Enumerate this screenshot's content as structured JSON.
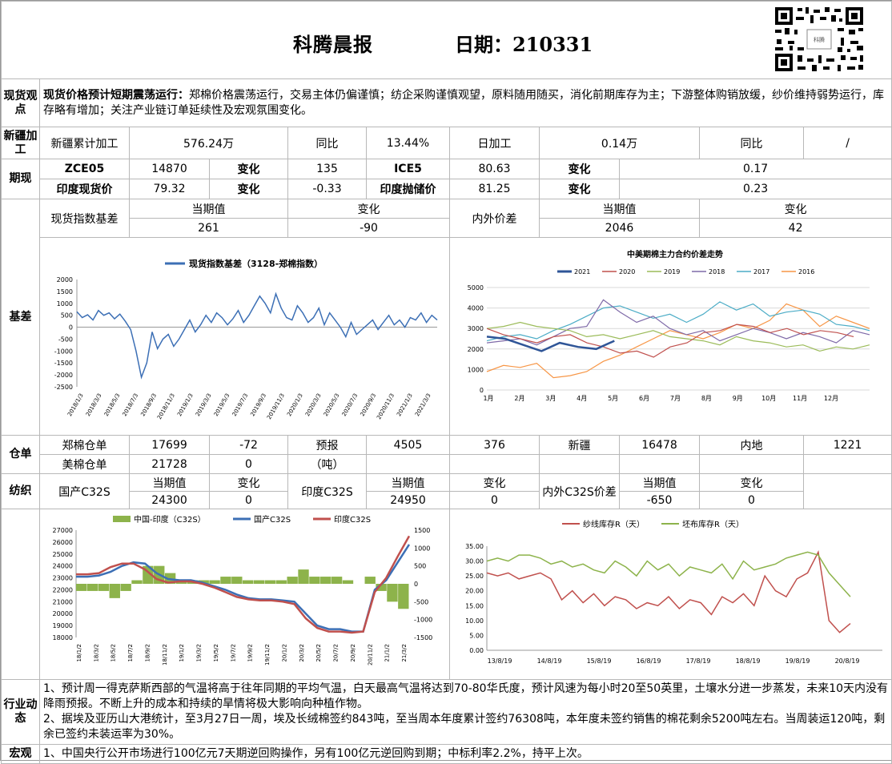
{
  "header": {
    "title": "科腾晨报",
    "date_label": "日期：210331",
    "qr_caption": "科腾"
  },
  "spot": {
    "label": "现货观点",
    "headline": "现货价格预计短期震荡运行：",
    "body": "郑棉价格震荡运行，交易主体仍偏谨慎；纺企采购谨慎观望，原料随用随买，消化前期库存为主；下游整体购销放缓，纱价维持弱势运行，库存略有增加；关注产业链订单延续性及宏观氛围变化。"
  },
  "xinjiang": {
    "label": "新疆加工",
    "cum_label": "新疆累计加工",
    "cum_value": "576.24万",
    "yoy_label": "同比",
    "yoy_value": "13.44%",
    "daily_label": "日加工",
    "daily_value": "0.14万",
    "yoy2_label": "同比",
    "yoy2_value": "/"
  },
  "futures": {
    "label": "期现",
    "rows": [
      {
        "k1": "ZCE05",
        "v1": "14870",
        "c1": "变化",
        "d1": "135",
        "k2": "ICE5",
        "v2": "80.63",
        "c2": "变化",
        "d2": "0.17"
      },
      {
        "k1": "印度现货价",
        "v1": "79.32",
        "c1": "变化",
        "d1": "-0.33",
        "k2": "印度抛储价",
        "v2": "81.25",
        "c2": "变化",
        "d2": "0.23"
      }
    ]
  },
  "basis": {
    "label": "基差",
    "idx_label": "现货指数基差",
    "cur_label": "当期值",
    "chg_label": "变化",
    "idx_cur": "261",
    "idx_chg": "-90",
    "diff_label": "内外价差",
    "diff_cur_label": "当期值",
    "diff_chg_label": "变化",
    "diff_cur": "2046",
    "diff_chg": "42"
  },
  "warehouse": {
    "label": "仓单",
    "zhengmian_label": "郑棉仓单",
    "zhengmian_value": "17699",
    "zhengmian_chg": "-72",
    "forecast_label": "预报",
    "forecast_unit": "（吨）",
    "forecast_value": "4505",
    "forecast_chg": "376",
    "xj_label": "新疆",
    "xj_value": "16478",
    "nd_label": "内地",
    "nd_value": "1221",
    "us_label": "美棉仓单",
    "us_value": "21728",
    "us_chg": "0"
  },
  "spinning": {
    "label": "纺织",
    "dom_label": "国产C32S",
    "cur_label": "当期值",
    "chg_label": "变化",
    "dom_cur": "24300",
    "dom_chg": "0",
    "ind_label": "印度C32S",
    "ind_cur_label": "当期值",
    "ind_chg_label": "变化",
    "ind_cur": "24950",
    "ind_chg": "0",
    "diff_label": "内外C32S价差",
    "diff_cur_label": "当期值",
    "diff_chg_label": "变化",
    "diff_cur": "-650",
    "diff_chg": "0"
  },
  "industry": {
    "label": "行业动态",
    "items": [
      "1、预计周一得克萨斯西部的气温将高于往年同期的平均气温，白天最高气温将达到70-80华氏度，预计风速为每小时20至50英里，土壤水分进一步蒸发，未来10天内没有降雨预报。不断上升的成本和持续的旱情将极大影响向种植作物。",
      "2、据埃及亚历山大港统计，至3月27日一周，埃及长绒棉签约843吨，至当周本年度累计签约76308吨，本年度未签约销售的棉花剩余5200吨左右。当周装运120吨，剩余已签约未装运率为30%。"
    ]
  },
  "macro": {
    "label": "宏观",
    "text": "1、中国央行公开市场进行100亿元7天期逆回购操作，另有100亿元逆回购到期；中标利率2.2%，持平上次。"
  },
  "chart_data": [
    {
      "type": "line",
      "title": "",
      "legend": [
        "现货指数基差（3128-郑棉指数）"
      ],
      "ylim": [
        -2500,
        2000
      ],
      "yticks": [
        "2000",
        "1500",
        "1000",
        "500",
        "0",
        "-500",
        "-1000",
        "-1500",
        "-2000",
        "-2500"
      ],
      "xticks": [
        "2018/1/3",
        "2018/3/3",
        "2018/5/3",
        "2018/7/3",
        "2018/9/3",
        "2018/11/3",
        "2019/1/3",
        "2019/3/3",
        "2019/5/3",
        "2019/7/3",
        "2019/9/3",
        "2019/11/3",
        "2020/1/3",
        "2020/3/3",
        "2020/5/3",
        "2020/7/3",
        "2020/9/3",
        "2020/11/3",
        "2021/1/3",
        "2021/3/3"
      ],
      "series": [
        {
          "name": "现货指数基差（3128-郑棉指数）",
          "color": "#3c6fb5",
          "values": [
            650,
            400,
            520,
            300,
            700,
            500,
            600,
            350,
            550,
            250,
            -100,
            -1000,
            -2100,
            -1500,
            -200,
            -900,
            -500,
            -300,
            -800,
            -500,
            -100,
            300,
            -200,
            100,
            500,
            200,
            600,
            400,
            100,
            350,
            700,
            200,
            500,
            900,
            1300,
            1000,
            600,
            1400,
            800,
            400,
            300,
            900,
            600,
            200,
            400,
            800,
            100,
            600,
            300,
            0,
            -400,
            200,
            -300,
            -100,
            100,
            300,
            -100,
            200,
            500,
            100,
            300,
            0,
            400,
            300,
            600,
            200,
            500,
            300
          ]
        }
      ]
    },
    {
      "type": "line",
      "title": "中美期棉主力合约价差走势",
      "ylim": [
        0,
        5000
      ],
      "yticks": [
        "5000",
        "4000",
        "3000",
        "2000",
        "1000",
        "0"
      ],
      "xticks": [
        "1月",
        "2月",
        "3月",
        "4月",
        "5月",
        "6月",
        "7月",
        "8月",
        "9月",
        "10月",
        "11月",
        "12月"
      ],
      "series": [
        {
          "name": "2021",
          "color": "#2f5597",
          "values": [
            2600,
            2500,
            2200,
            1900,
            2300,
            2100,
            2000,
            2400
          ]
        },
        {
          "name": "2020",
          "color": "#c0504d",
          "values": [
            3000,
            2700,
            2500,
            2300,
            2600,
            2700,
            2300,
            2100,
            1800,
            1900,
            1600,
            2100,
            2300,
            2800,
            2900,
            3200,
            3100,
            2800,
            3000,
            2700,
            2900,
            2800,
            2600
          ]
        },
        {
          "name": "2019",
          "color": "#9bbb59",
          "values": [
            3000,
            3100,
            3300,
            3100,
            3000,
            2900,
            2600,
            2700,
            2500,
            2700,
            2900,
            2600,
            2500,
            2400,
            2200,
            2600,
            2400,
            2300,
            2100,
            2200,
            1900,
            2100,
            2000,
            2200
          ]
        },
        {
          "name": "2018",
          "color": "#7f6aa8",
          "values": [
            2300,
            2400,
            2500,
            2200,
            2600,
            3000,
            3100,
            4400,
            3800,
            3300,
            3600,
            3000,
            2700,
            2900,
            2400,
            2700,
            3000,
            2800,
            2500,
            2800,
            2600,
            2300,
            2900,
            2700
          ]
        },
        {
          "name": "2017",
          "color": "#4bacc6",
          "values": [
            2400,
            2600,
            2700,
            2500,
            2900,
            3200,
            3600,
            4000,
            4100,
            3800,
            3500,
            3700,
            3300,
            3700,
            4300,
            3900,
            4200,
            3600,
            3800,
            3900,
            3700,
            3200,
            3100,
            2900
          ]
        },
        {
          "name": "2016",
          "color": "#f79646",
          "values": [
            900,
            1200,
            1100,
            1300,
            600,
            700,
            900,
            1400,
            1700,
            2100,
            2500,
            2900,
            2700,
            2500,
            2800,
            3200,
            3000,
            3400,
            4200,
            3900,
            3100,
            3600,
            3300,
            3000
          ]
        }
      ]
    },
    {
      "type": "line",
      "title": "",
      "legend": [
        "中国-印度（C32S）",
        "国产C32S",
        "印度C32S"
      ],
      "ylim": [
        18000,
        27000
      ],
      "y2lim": [
        -1500,
        1500
      ],
      "yticks": [
        "27000",
        "26000",
        "25000",
        "24000",
        "23000",
        "22000",
        "21000",
        "20000",
        "19000",
        "18000"
      ],
      "y2ticks": [
        "1500",
        "1000",
        "500",
        "0",
        "-500",
        "-1000",
        "-1500"
      ],
      "xticks": [
        "18/1/2",
        "18/3/2",
        "18/5/2",
        "18/7/2",
        "18/9/2",
        "18/11/2",
        "19/1/2",
        "19/3/2",
        "19/5/2",
        "19/7/2",
        "19/9/2",
        "19/11/2",
        "20/1/2",
        "20/3/2",
        "20/5/2",
        "20/7/2",
        "20/9/2",
        "20/11/2",
        "21/1/2",
        "21/3/2"
      ],
      "series": [
        {
          "name": "国产C32S",
          "color": "#3c6fb5",
          "values": [
            23100,
            23100,
            23200,
            23500,
            24000,
            24300,
            24200,
            23400,
            22900,
            22800,
            22800,
            22600,
            22300,
            22000,
            21600,
            21300,
            21200,
            21200,
            21100,
            21000,
            20000,
            19000,
            18700,
            18700,
            18500,
            18500,
            22000,
            22800,
            24300,
            25800
          ]
        },
        {
          "name": "印度C32S",
          "color": "#c0504d",
          "values": [
            23300,
            23300,
            23400,
            23900,
            24200,
            24200,
            23700,
            22900,
            22600,
            22700,
            22700,
            22500,
            22200,
            21800,
            21400,
            21200,
            21100,
            21100,
            21000,
            20800,
            19600,
            18800,
            18500,
            18500,
            18400,
            18500,
            21800,
            23000,
            24800,
            26500
          ]
        },
        {
          "name": "中国-印度（C32S）",
          "color": "#8db34b",
          "values": [
            -200,
            -200,
            -200,
            -400,
            -200,
            100,
            500,
            500,
            300,
            100,
            100,
            100,
            100,
            200,
            200,
            100,
            100,
            100,
            100,
            200,
            400,
            200,
            200,
            200,
            100,
            0,
            200,
            -200,
            -500,
            -700
          ]
        }
      ]
    },
    {
      "type": "line",
      "title": "",
      "legend": [
        "纱线库存R（天）",
        "坯布库存R（天）"
      ],
      "ylim": [
        0,
        35
      ],
      "yticks": [
        "35.00",
        "30.00",
        "25.00",
        "20.00",
        "15.00",
        "10.00",
        "5.00",
        "0.00"
      ],
      "xticks": [
        "13/8/19",
        "14/8/19",
        "15/8/19",
        "16/8/19",
        "17/8/19",
        "18/8/19",
        "19/8/19",
        "20/8/19"
      ],
      "series": [
        {
          "name": "纱线库存R（天）",
          "color": "#c0504d",
          "values": [
            26,
            25,
            26,
            24,
            25,
            26,
            24,
            17,
            20,
            16,
            19,
            15,
            18,
            17,
            14,
            16,
            15,
            18,
            14,
            17,
            16,
            12,
            18,
            16,
            19,
            15,
            25,
            20,
            18,
            24,
            26,
            33,
            10,
            6,
            9
          ]
        },
        {
          "name": "坯布库存R（天）",
          "color": "#8db34b",
          "values": [
            30,
            31,
            30,
            32,
            32,
            31,
            29,
            30,
            28,
            29,
            27,
            26,
            30,
            28,
            25,
            30,
            27,
            29,
            25,
            28,
            27,
            26,
            29,
            24,
            30,
            27,
            28,
            29,
            31,
            32,
            33,
            32,
            26,
            22,
            18
          ]
        }
      ]
    }
  ]
}
